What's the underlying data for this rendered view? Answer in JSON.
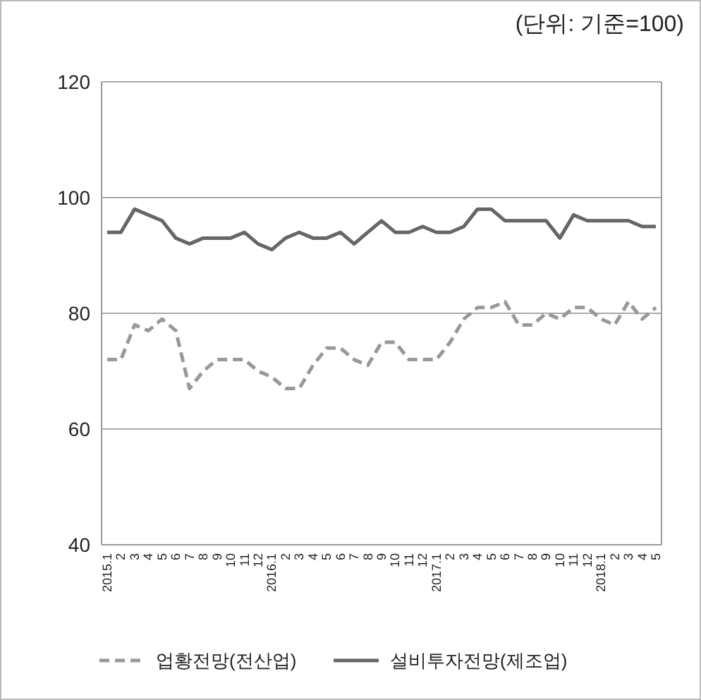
{
  "chart_data": {
    "type": "line",
    "annotations": [
      "(단위: 기준=100)"
    ],
    "categories": [
      "2015.1",
      "2",
      "3",
      "4",
      "5",
      "6",
      "7",
      "8",
      "9",
      "10",
      "11",
      "12",
      "2016.1",
      "2",
      "3",
      "4",
      "5",
      "6",
      "7",
      "8",
      "9",
      "10",
      "11",
      "12",
      "2017.1",
      "2",
      "3",
      "4",
      "5",
      "6",
      "7",
      "8",
      "9",
      "10",
      "11",
      "12",
      "2018.1",
      "2",
      "3",
      "4",
      "5"
    ],
    "series": [
      {
        "name": "업황전망(전산업)",
        "color": "#999999",
        "line_style": "dashed",
        "values": [
          72,
          72,
          78,
          77,
          79,
          77,
          67,
          70,
          72,
          72,
          72,
          70,
          69,
          67,
          67,
          71,
          74,
          74,
          72,
          71,
          75,
          75,
          72,
          72,
          72,
          75,
          79,
          81,
          81,
          82,
          78,
          78,
          80,
          79,
          81,
          81,
          79,
          78,
          82,
          79,
          81
        ]
      },
      {
        "name": "설비투자전망(제조업)",
        "color": "#666666",
        "line_style": "solid",
        "values": [
          94,
          94,
          98,
          97,
          96,
          93,
          92,
          93,
          93,
          93,
          94,
          92,
          91,
          93,
          94,
          93,
          93,
          94,
          92,
          94,
          96,
          94,
          94,
          95,
          94,
          94,
          95,
          98,
          98,
          96,
          96,
          96,
          96,
          93,
          97,
          96,
          96,
          96,
          96,
          95,
          95
        ]
      }
    ],
    "ylim": [
      40,
      120
    ],
    "yticks": [
      40,
      60,
      80,
      100,
      120
    ],
    "grid": "y",
    "legend": "bottom",
    "marker": "none"
  }
}
